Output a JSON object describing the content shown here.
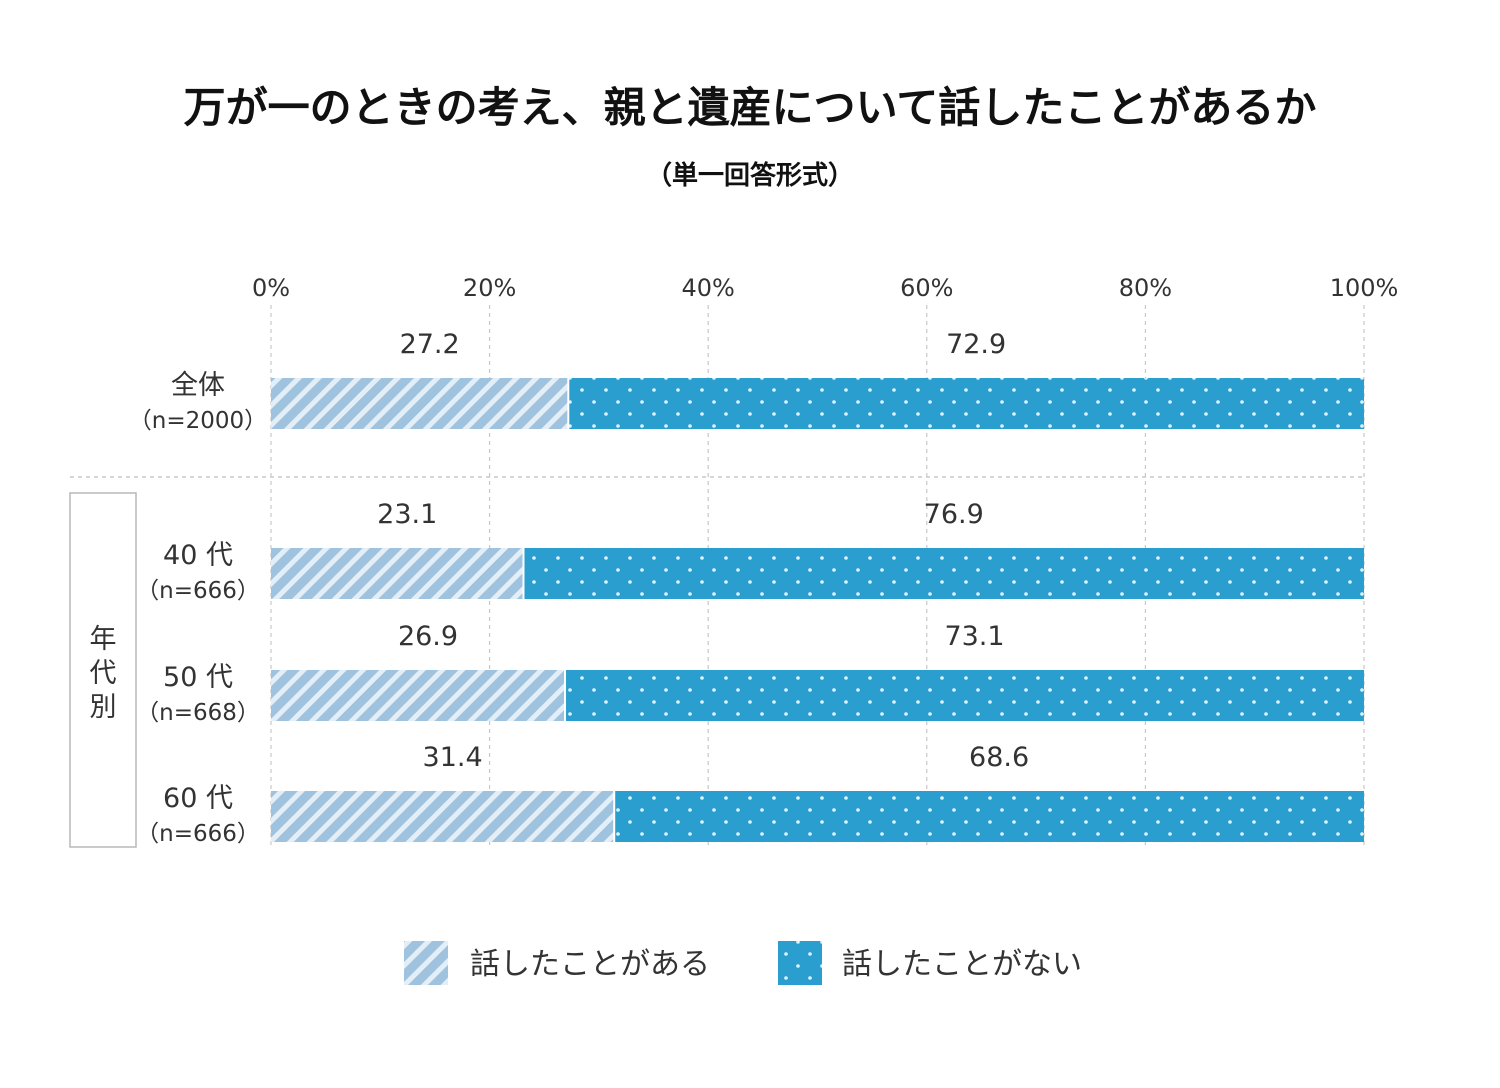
{
  "chart_data": {
    "type": "bar",
    "stacked": true,
    "orientation": "horizontal",
    "title": "万が一のときの考え、親と遺産について話したことがあるか",
    "subtitle": "（単一回答形式）",
    "xlim": [
      0,
      100
    ],
    "xticks": [
      0,
      20,
      40,
      60,
      80,
      100
    ],
    "xtick_suffix": "%",
    "categories": [
      {
        "label": "全体",
        "n": "（n=2000）"
      },
      {
        "label": "40 代",
        "n": "（n=666）"
      },
      {
        "label": "50 代",
        "n": "（n=668）"
      },
      {
        "label": "60 代",
        "n": "（n=666）"
      }
    ],
    "group_label": "年代別",
    "series": [
      {
        "name": "話したことがある",
        "pattern": "stripes",
        "color": "#9fc3de",
        "values": [
          27.2,
          23.1,
          26.9,
          31.4
        ],
        "labels": [
          "27.2",
          "23.1",
          "26.9",
          "31.4"
        ]
      },
      {
        "name": "話したことがない",
        "pattern": "dots",
        "color": "#2a9fcf",
        "values": [
          72.9,
          76.9,
          73.1,
          68.6
        ],
        "labels": [
          "72.9",
          "76.9",
          "73.1",
          "68.6"
        ]
      }
    ],
    "grid": true,
    "legend": "bottom"
  }
}
